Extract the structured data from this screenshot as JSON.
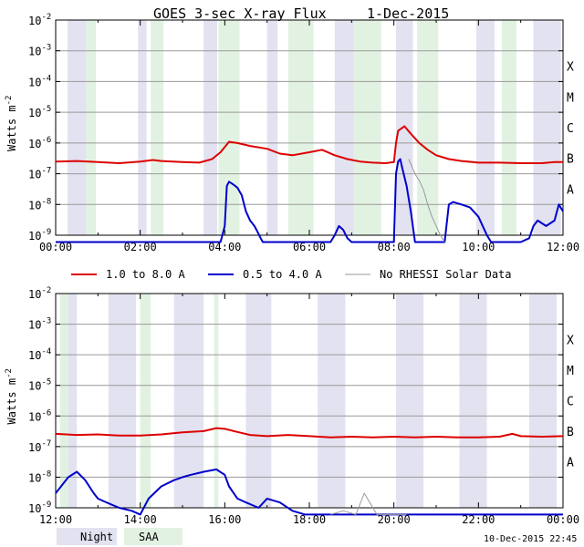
{
  "title": "GOES 3-sec X-ray Flux",
  "date": "1-Dec-2015",
  "timestamp": "10-Dec-2015 22:45",
  "colors": {
    "long": "#dd0000",
    "short": "#0000cc",
    "norhessi": "#999999",
    "night": "#e2e2f0",
    "saa": "#e2f2e2",
    "grid": "#9a9a9a"
  },
  "legend": {
    "long_label": "1.0 to 8.0 A",
    "short_label": "0.5 to 4.0 A",
    "norhessi_label": "No RHESSI Solar Data",
    "night_label": "Night",
    "saa_label": "SAA"
  },
  "chart_data": [
    {
      "type": "line",
      "panel": "00:00-12:00",
      "ylabel": "Watts m-2",
      "yscale": "log",
      "ylim": [
        "1e-9",
        "1e-2"
      ],
      "y_ticks": [
        "10-9",
        "10-8",
        "10-7",
        "10-6",
        "10-5",
        "10-4",
        "10-3",
        "10-2"
      ],
      "flare_classes": [
        "A",
        "B",
        "C",
        "M",
        "X"
      ],
      "xlim": [
        "00:00",
        "12:00"
      ],
      "x_ticks": [
        "00:00",
        "02:00",
        "04:00",
        "06:00",
        "08:00",
        "10:00",
        "12:00"
      ],
      "night_intervals": [
        [
          0.28,
          0.72
        ],
        [
          1.95,
          2.15
        ],
        [
          3.5,
          3.82
        ],
        [
          5.0,
          5.25
        ],
        [
          6.6,
          7.05
        ],
        [
          8.05,
          8.45
        ],
        [
          9.95,
          10.38
        ],
        [
          11.3,
          11.95
        ]
      ],
      "saa_intervals": [
        [
          0.72,
          0.95
        ],
        [
          2.25,
          2.55
        ],
        [
          3.85,
          4.35
        ],
        [
          5.5,
          6.1
        ],
        [
          7.05,
          7.7
        ],
        [
          8.55,
          9.05
        ],
        [
          10.55,
          10.9
        ]
      ],
      "series": [
        {
          "name": "1.0 to 8.0 A",
          "x": [
            0.0,
            0.5,
            1.0,
            1.5,
            2.0,
            2.3,
            2.5,
            3.0,
            3.4,
            3.7,
            3.9,
            4.1,
            4.3,
            4.6,
            5.0,
            5.3,
            5.6,
            6.0,
            6.3,
            6.6,
            6.9,
            7.2,
            7.5,
            7.8,
            8.0,
            8.05,
            8.1,
            8.25,
            8.4,
            8.6,
            8.8,
            9.0,
            9.3,
            9.6,
            10.0,
            10.5,
            11.0,
            11.5,
            11.8,
            12.0
          ],
          "y": [
            2.5e-07,
            2.6e-07,
            2.4e-07,
            2.2e-07,
            2.5e-07,
            2.8e-07,
            2.6e-07,
            2.4e-07,
            2.3e-07,
            3e-07,
            5e-07,
            1.1e-06,
            1e-06,
            8e-07,
            6.5e-07,
            4.5e-07,
            4e-07,
            5e-07,
            6e-07,
            4e-07,
            3e-07,
            2.5e-07,
            2.3e-07,
            2.2e-07,
            2.4e-07,
            1e-06,
            2.5e-06,
            3.5e-06,
            2e-06,
            1e-06,
            6e-07,
            4e-07,
            3e-07,
            2.6e-07,
            2.3e-07,
            2.3e-07,
            2.2e-07,
            2.2e-07,
            2.4e-07,
            2.4e-07
          ]
        },
        {
          "name": "0.5 to 4.0 A",
          "x": [
            0.0,
            3.9,
            4.0,
            4.05,
            4.1,
            4.2,
            4.3,
            4.4,
            4.5,
            4.6,
            4.7,
            4.75,
            4.85,
            4.9,
            5.0,
            5.6,
            6.5,
            6.6,
            6.7,
            6.8,
            6.9,
            7.0,
            8.0,
            8.05,
            8.1,
            8.15,
            8.2,
            8.3,
            8.4,
            8.5,
            9.2,
            9.3,
            9.4,
            9.6,
            9.8,
            10.0,
            10.1,
            10.2,
            10.3,
            10.5,
            11.0,
            11.2,
            11.3,
            11.4,
            11.6,
            11.8,
            11.9,
            12.0
          ],
          "y": [
            6e-10,
            6e-10,
            2e-09,
            4e-08,
            5.5e-08,
            4.5e-08,
            3.5e-08,
            2e-08,
            6e-09,
            3e-09,
            2e-09,
            1.5e-09,
            8e-10,
            6e-10,
            6e-10,
            6e-10,
            6e-10,
            1e-09,
            2e-09,
            1.5e-09,
            8e-10,
            6e-10,
            6e-10,
            1e-07,
            2.5e-07,
            3e-07,
            1.5e-07,
            4e-08,
            6e-09,
            6e-10,
            6e-10,
            1e-08,
            1.2e-08,
            1e-08,
            8e-09,
            4e-09,
            2e-09,
            1e-09,
            6e-10,
            6e-10,
            6e-10,
            8e-10,
            2e-09,
            3e-09,
            2e-09,
            3e-09,
            1e-08,
            6e-09
          ]
        },
        {
          "name": "No RHESSI Solar Data",
          "x": [
            8.35,
            8.5,
            8.6,
            8.7,
            8.8,
            8.9,
            9.0,
            9.1,
            9.2
          ],
          "y": [
            3e-07,
            1e-07,
            6e-08,
            3e-08,
            1e-08,
            4e-09,
            2e-09,
            1e-09,
            6e-10
          ]
        }
      ]
    },
    {
      "type": "line",
      "panel": "12:00-00:00",
      "ylabel": "Watts m-2",
      "yscale": "log",
      "ylim": [
        "1e-9",
        "1e-2"
      ],
      "y_ticks": [
        "10-9",
        "10-8",
        "10-7",
        "10-6",
        "10-5",
        "10-4",
        "10-3",
        "10-2"
      ],
      "flare_classes": [
        "A",
        "B",
        "C",
        "M",
        "X"
      ],
      "xlim": [
        "12:00",
        "00:00"
      ],
      "x_ticks": [
        "12:00",
        "14:00",
        "16:00",
        "18:00",
        "20:00",
        "22:00",
        "00:00"
      ],
      "night_intervals": [
        [
          12.3,
          12.5
        ],
        [
          13.25,
          13.9
        ],
        [
          14.8,
          15.5
        ],
        [
          16.5,
          17.1
        ],
        [
          18.2,
          18.85
        ],
        [
          20.05,
          20.7
        ],
        [
          21.55,
          22.2
        ],
        [
          23.2,
          23.85
        ]
      ],
      "saa_intervals": [
        [
          12.1,
          12.3
        ],
        [
          14.0,
          14.25
        ],
        [
          15.75,
          15.85
        ]
      ],
      "series": [
        {
          "name": "1.0 to 8.0 A",
          "x": [
            12.0,
            12.5,
            13.0,
            13.5,
            14.0,
            14.5,
            15.0,
            15.5,
            15.8,
            16.0,
            16.3,
            16.6,
            17.0,
            17.5,
            18.0,
            18.5,
            19.0,
            19.5,
            20.0,
            20.5,
            21.0,
            21.5,
            22.0,
            22.5,
            22.8,
            23.0,
            23.5,
            24.0
          ],
          "y": [
            2.6e-07,
            2.4e-07,
            2.5e-07,
            2.3e-07,
            2.3e-07,
            2.5e-07,
            2.9e-07,
            3.2e-07,
            4e-07,
            3.8e-07,
            3e-07,
            2.4e-07,
            2.2e-07,
            2.4e-07,
            2.2e-07,
            2e-07,
            2.1e-07,
            2e-07,
            2.1e-07,
            2e-07,
            2.1e-07,
            2e-07,
            2e-07,
            2.1e-07,
            2.6e-07,
            2.2e-07,
            2.1e-07,
            2.2e-07
          ]
        },
        {
          "name": "0.5 to 4.0 A",
          "x": [
            12.0,
            12.3,
            12.5,
            12.7,
            12.9,
            13.0,
            13.2,
            13.5,
            13.8,
            14.0,
            14.2,
            14.5,
            14.8,
            15.0,
            15.2,
            15.5,
            15.8,
            16.0,
            16.1,
            16.3,
            16.5,
            16.8,
            17.0,
            17.3,
            17.6,
            17.9,
            18.0,
            19.0,
            20.0,
            21.0,
            22.0,
            23.0,
            24.0
          ],
          "y": [
            3e-09,
            1e-08,
            1.5e-08,
            8e-09,
            3e-09,
            2e-09,
            1.5e-09,
            1e-09,
            8e-10,
            6e-10,
            2e-09,
            5e-09,
            8e-09,
            1e-08,
            1.2e-08,
            1.5e-08,
            1.8e-08,
            1.2e-08,
            5e-09,
            2e-09,
            1.5e-09,
            1e-09,
            2e-09,
            1.5e-09,
            8e-10,
            6e-10,
            6e-10,
            6e-10,
            6e-10,
            6e-10,
            6e-10,
            6e-10,
            6e-10
          ]
        },
        {
          "name": "No RHESSI Solar Data",
          "x": [
            18.5,
            18.8,
            19.1,
            19.3,
            19.6,
            20.0,
            20.3
          ],
          "y": [
            6e-10,
            8e-10,
            6e-10,
            3e-09,
            6e-10,
            6e-10,
            6e-10
          ]
        }
      ]
    }
  ]
}
